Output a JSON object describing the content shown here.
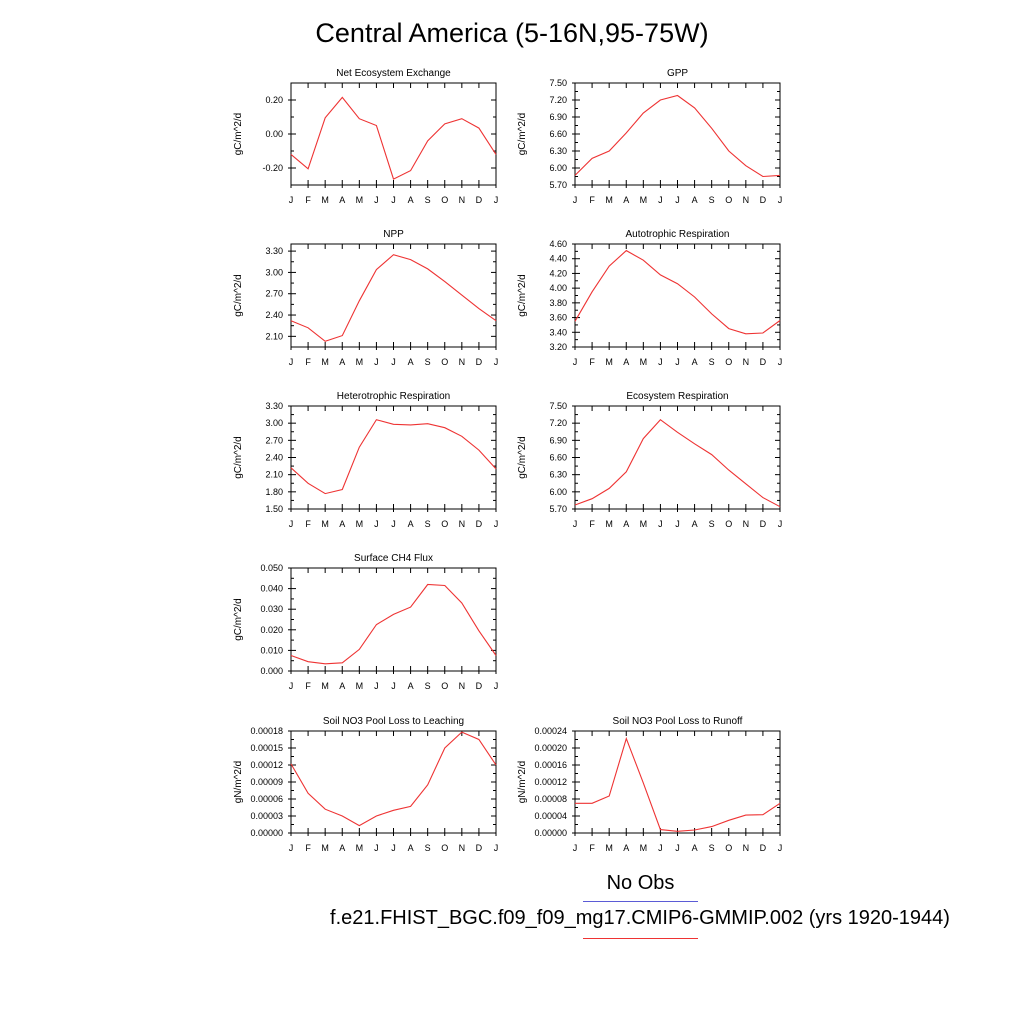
{
  "title": "Central America (5-16N,95-75W)",
  "legend": {
    "obs_label": "No Obs",
    "obs_color": "#5b5bd6",
    "model_label": "f.e21.FHIST_BGC.f09_f09_mg17.CMIP6-GMMIP.002 (yrs 1920-1944)",
    "model_color": "#ee3333"
  },
  "chart_data": [
    {
      "type": "line",
      "title": "Net Ecosystem Exchange",
      "ylabel": "gC/m^2/d",
      "x": [
        "J",
        "F",
        "M",
        "A",
        "M",
        "J",
        "J",
        "A",
        "S",
        "O",
        "N",
        "D",
        "J"
      ],
      "ylim": [
        -0.3,
        0.3
      ],
      "yticks": [
        "0.20",
        "0.00",
        "-0.20"
      ],
      "ytick_values": [
        0.2,
        0.0,
        -0.2
      ],
      "series": [
        {
          "values": [
            -0.12,
            -0.205,
            0.095,
            0.215,
            0.09,
            0.05,
            -0.265,
            -0.215,
            -0.04,
            0.06,
            0.09,
            0.035,
            -0.12
          ]
        }
      ]
    },
    {
      "type": "line",
      "title": "GPP",
      "ylabel": "gC/m^2/d",
      "x": [
        "J",
        "F",
        "M",
        "A",
        "M",
        "J",
        "J",
        "A",
        "S",
        "O",
        "N",
        "D",
        "J"
      ],
      "ylim": [
        5.7,
        7.5
      ],
      "yticks": [
        "7.50",
        "7.20",
        "6.90",
        "6.60",
        "6.30",
        "6.00",
        "5.70"
      ],
      "ytick_values": [
        7.5,
        7.2,
        6.9,
        6.6,
        6.3,
        6.0,
        5.7
      ],
      "series": [
        {
          "values": [
            5.87,
            6.17,
            6.3,
            6.62,
            6.97,
            7.2,
            7.28,
            7.06,
            6.7,
            6.3,
            6.04,
            5.85,
            5.87
          ]
        }
      ]
    },
    {
      "type": "line",
      "title": "NPP",
      "ylabel": "gC/m^2/d",
      "x": [
        "J",
        "F",
        "M",
        "A",
        "M",
        "J",
        "J",
        "A",
        "S",
        "O",
        "N",
        "D",
        "J"
      ],
      "ylim": [
        1.95,
        3.4
      ],
      "yticks": [
        "3.30",
        "3.00",
        "2.70",
        "2.40",
        "2.10"
      ],
      "ytick_values": [
        3.3,
        3.0,
        2.7,
        2.4,
        2.1
      ],
      "series": [
        {
          "values": [
            2.32,
            2.22,
            2.03,
            2.11,
            2.6,
            3.04,
            3.25,
            3.18,
            3.05,
            2.87,
            2.68,
            2.49,
            2.32
          ]
        }
      ]
    },
    {
      "type": "line",
      "title": "Autotrophic Respiration",
      "ylabel": "gC/m^2/d",
      "x": [
        "J",
        "F",
        "M",
        "A",
        "M",
        "J",
        "J",
        "A",
        "S",
        "O",
        "N",
        "D",
        "J"
      ],
      "ylim": [
        3.2,
        4.6
      ],
      "yticks": [
        "4.60",
        "4.40",
        "4.20",
        "4.00",
        "3.80",
        "3.60",
        "3.40",
        "3.20"
      ],
      "ytick_values": [
        4.6,
        4.4,
        4.2,
        4.0,
        3.8,
        3.6,
        3.4,
        3.2
      ],
      "series": [
        {
          "values": [
            3.55,
            3.95,
            4.3,
            4.51,
            4.38,
            4.18,
            4.06,
            3.88,
            3.65,
            3.45,
            3.38,
            3.39,
            3.56
          ]
        }
      ]
    },
    {
      "type": "line",
      "title": "Heterotrophic Respiration",
      "ylabel": "gC/m^2/d",
      "x": [
        "J",
        "F",
        "M",
        "A",
        "M",
        "J",
        "J",
        "A",
        "S",
        "O",
        "N",
        "D",
        "J"
      ],
      "ylim": [
        1.5,
        3.3
      ],
      "yticks": [
        "3.30",
        "3.00",
        "2.70",
        "2.40",
        "2.10",
        "1.80",
        "1.50"
      ],
      "ytick_values": [
        3.3,
        3.0,
        2.7,
        2.4,
        2.1,
        1.8,
        1.5
      ],
      "series": [
        {
          "values": [
            2.22,
            1.95,
            1.77,
            1.84,
            2.58,
            3.06,
            2.98,
            2.97,
            2.99,
            2.92,
            2.77,
            2.53,
            2.2
          ]
        }
      ]
    },
    {
      "type": "line",
      "title": "Ecosystem Respiration",
      "ylabel": "gC/m^2/d",
      "x": [
        "J",
        "F",
        "M",
        "A",
        "M",
        "J",
        "J",
        "A",
        "S",
        "O",
        "N",
        "D",
        "J"
      ],
      "ylim": [
        5.7,
        7.5
      ],
      "yticks": [
        "7.50",
        "7.20",
        "6.90",
        "6.60",
        "6.30",
        "6.00",
        "5.70"
      ],
      "ytick_values": [
        7.5,
        7.2,
        6.9,
        6.6,
        6.3,
        6.0,
        5.7
      ],
      "series": [
        {
          "values": [
            5.77,
            5.88,
            6.06,
            6.35,
            6.93,
            7.26,
            7.04,
            6.84,
            6.65,
            6.38,
            6.14,
            5.9,
            5.74
          ]
        }
      ]
    },
    {
      "type": "line",
      "title": "Surface CH4 Flux",
      "ylabel": "gC/m^2/d",
      "x": [
        "J",
        "F",
        "M",
        "A",
        "M",
        "J",
        "J",
        "A",
        "S",
        "O",
        "N",
        "D",
        "J"
      ],
      "ylim": [
        0.0,
        0.05
      ],
      "yticks": [
        "0.050",
        "0.040",
        "0.030",
        "0.020",
        "0.010",
        "0.000"
      ],
      "ytick_values": [
        0.05,
        0.04,
        0.03,
        0.02,
        0.01,
        0.0
      ],
      "series": [
        {
          "values": [
            0.0075,
            0.0045,
            0.0035,
            0.004,
            0.0105,
            0.0225,
            0.0275,
            0.031,
            0.042,
            0.0415,
            0.033,
            0.0195,
            0.0075
          ]
        }
      ]
    },
    {
      "type": "line",
      "title": "Soil NO3 Pool Loss to Leaching",
      "ylabel": "gN/m^2/d",
      "x": [
        "J",
        "F",
        "M",
        "A",
        "M",
        "J",
        "J",
        "A",
        "S",
        "O",
        "N",
        "D",
        "J"
      ],
      "ylim": [
        0.0,
        0.00018
      ],
      "yticks": [
        "0.00018",
        "0.00015",
        "0.00012",
        "0.00009",
        "0.00006",
        "0.00003",
        "0.00000"
      ],
      "ytick_values": [
        0.00018,
        0.00015,
        0.00012,
        9e-05,
        6e-05,
        3e-05,
        0.0
      ],
      "series": [
        {
          "values": [
            0.000122,
            7e-05,
            4.2e-05,
            3e-05,
            1.3e-05,
            3e-05,
            4e-05,
            4.7e-05,
            8.5e-05,
            0.00015,
            0.000178,
            0.000165,
            0.00012
          ]
        }
      ]
    },
    {
      "type": "line",
      "title": "Soil NO3 Pool Loss to Runoff",
      "ylabel": "gN/m^2/d",
      "x": [
        "J",
        "F",
        "M",
        "A",
        "M",
        "J",
        "J",
        "A",
        "S",
        "O",
        "N",
        "D",
        "J"
      ],
      "ylim": [
        0.0,
        0.00024
      ],
      "yticks": [
        "0.00024",
        "0.00020",
        "0.00016",
        "0.00012",
        "0.00008",
        "0.00004",
        "0.00000"
      ],
      "ytick_values": [
        0.00024,
        0.0002,
        0.00016,
        0.00012,
        8e-05,
        4e-05,
        0.0
      ],
      "series": [
        {
          "values": [
            7e-05,
            7e-05,
            8.7e-05,
            0.000222,
            0.000118,
            8e-06,
            4e-06,
            7e-06,
            1.5e-05,
            3e-05,
            4.2e-05,
            4.3e-05,
            7e-05
          ]
        }
      ]
    }
  ]
}
